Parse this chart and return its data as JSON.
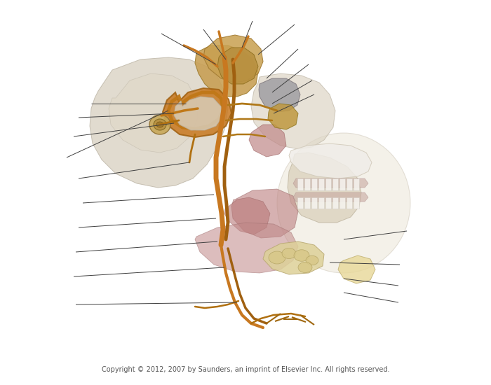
{
  "figure_width": 7.0,
  "figure_height": 5.5,
  "dpi": 100,
  "bg_color": "#ffffff",
  "copyright_text": "Copyright © 2012, 2007 by Saunders, an imprint of Elsevier Inc. All rights reserved.",
  "copyright_fontsize": 7,
  "copyright_color": "#555555",
  "nerve_orange": "#C87820",
  "nerve_dark": "#A06010",
  "bone_tan": "#D4AA70",
  "bone_light": "#E8DDD0",
  "bone_gray": "#B0ABA8",
  "muscle_pink": "#C89090",
  "muscle_dark": "#B07070",
  "tissue_yellow": "#E8D890",
  "skull_gray": "#D0C8B8",
  "line_color": "#404040",
  "line_width": 0.7
}
